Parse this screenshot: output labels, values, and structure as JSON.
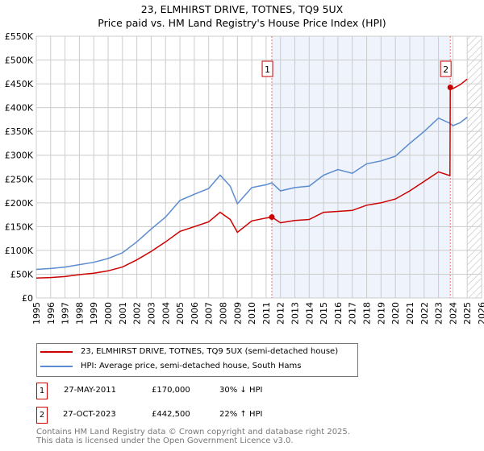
{
  "chart_data": {
    "type": "line",
    "title": "23, ELMHIRST DRIVE, TOTNES, TQ9 5UX",
    "subtitle": "Price paid vs. HM Land Registry's House Price Index (HPI)",
    "xlim": [
      1995,
      2026
    ],
    "ylim": [
      0,
      550000
    ],
    "xticks": [
      "1995",
      "1996",
      "1997",
      "1998",
      "1999",
      "2000",
      "2001",
      "2002",
      "2003",
      "2004",
      "2005",
      "2006",
      "2007",
      "2008",
      "2009",
      "2010",
      "2011",
      "2012",
      "2013",
      "2014",
      "2015",
      "2016",
      "2017",
      "2018",
      "2019",
      "2020",
      "2021",
      "2022",
      "2023",
      "2024",
      "2025",
      "2026"
    ],
    "yticks": [
      "£0",
      "£50K",
      "£100K",
      "£150K",
      "£200K",
      "£250K",
      "£300K",
      "£350K",
      "£400K",
      "£450K",
      "£500K",
      "£550K"
    ],
    "grid": true,
    "series": [
      {
        "name": "23, ELMHIRST DRIVE, TOTNES, TQ9 5UX (semi-detached house)",
        "color": "#cc0000",
        "x": [
          1995,
          1996,
          1997,
          1998,
          1999,
          2000,
          2001,
          2002,
          2003,
          2004,
          2005,
          2006,
          2007,
          2007.8,
          2008.5,
          2009,
          2010,
          2011,
          2011.4,
          2012,
          2013,
          2014,
          2015,
          2016,
          2017,
          2018,
          2019,
          2020,
          2021,
          2022,
          2023,
          2023.8,
          2023.82,
          2024,
          2024.5,
          2025
        ],
        "y": [
          42000,
          43000,
          45000,
          49000,
          52000,
          57000,
          65000,
          80000,
          98000,
          118000,
          140000,
          150000,
          160000,
          180000,
          165000,
          138000,
          162000,
          168000,
          170000,
          158000,
          163000,
          165000,
          180000,
          182000,
          184000,
          195000,
          200000,
          208000,
          225000,
          245000,
          265000,
          257000,
          442500,
          440000,
          448000,
          460000
        ]
      },
      {
        "name": "HPI: Average price, semi-detached house, South Hams",
        "color": "#5b8bd0",
        "x": [
          1995,
          1996,
          1997,
          1998,
          1999,
          2000,
          2001,
          2002,
          2003,
          2004,
          2005,
          2006,
          2007,
          2007.8,
          2008.5,
          2009,
          2010,
          2011,
          2011.4,
          2012,
          2013,
          2014,
          2015,
          2016,
          2017,
          2018,
          2019,
          2020,
          2021,
          2022,
          2023,
          2023.8,
          2024,
          2024.5,
          2025
        ],
        "y": [
          60000,
          62000,
          65000,
          70000,
          75000,
          83000,
          95000,
          118000,
          145000,
          170000,
          205000,
          218000,
          230000,
          258000,
          235000,
          198000,
          232000,
          238000,
          242000,
          225000,
          232000,
          235000,
          258000,
          270000,
          262000,
          282000,
          288000,
          298000,
          325000,
          350000,
          378000,
          367000,
          362000,
          368000,
          380000
        ]
      }
    ],
    "annotations": [
      {
        "label": "1",
        "x": 2011.4,
        "y": 170000
      },
      {
        "label": "2",
        "x": 2023.82,
        "y": 442500
      }
    ],
    "shaded_range": [
      2011.4,
      2023.82
    ],
    "forecast_hatch_from": 2025
  },
  "legend": {
    "property": "23, ELMHIRST DRIVE, TOTNES, TQ9 5UX (semi-detached house)",
    "hpi": "HPI: Average price, semi-detached house, South Hams"
  },
  "transactions": [
    {
      "num": "1",
      "date": "27-MAY-2011",
      "price": "£170,000",
      "hpi": "30% ↓ HPI"
    },
    {
      "num": "2",
      "date": "27-OCT-2023",
      "price": "£442,500",
      "hpi": "22% ↑ HPI"
    }
  ],
  "footer": {
    "line1": "Contains HM Land Registry data © Crown copyright and database right 2025.",
    "line2": "This data is licensed under the Open Government Licence v3.0."
  }
}
